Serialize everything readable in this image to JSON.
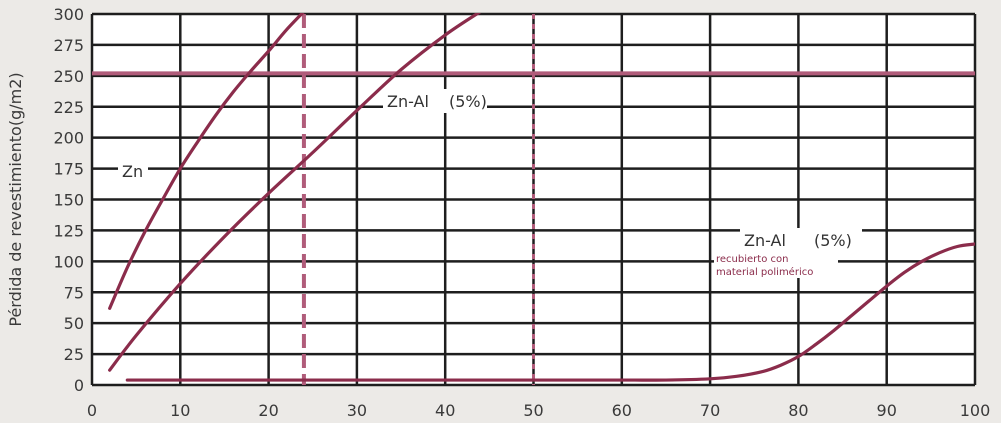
{
  "colors": {
    "background": "#eceae7",
    "plot_background": "#ffffff",
    "grid": "#1e1e1e",
    "curve": "#8b2c4b",
    "reference_line": "#b05c7a",
    "note": "#8b2c4b"
  },
  "chart_data": {
    "type": "line",
    "title": "",
    "xlabel": "",
    "ylabel": "Pérdida de revestimiento(g/m2)",
    "xlim": [
      0,
      100
    ],
    "ylim": [
      0,
      300
    ],
    "x_ticks": [
      "0",
      "10",
      "20",
      "30",
      "40",
      "50",
      "60",
      "70",
      "80",
      "90",
      "100"
    ],
    "y_ticks": [
      "0",
      "25",
      "50",
      "75",
      "100",
      "125",
      "150",
      "175",
      "200",
      "225",
      "250",
      "275",
      "300"
    ],
    "grid": true,
    "series": [
      {
        "x": [
          2,
          4,
          6,
          8,
          10,
          12,
          14,
          16,
          18,
          20,
          22,
          24
        ],
        "y": [
          62,
          95,
          124,
          150,
          175,
          197,
          218,
          237,
          254,
          270,
          287,
          302
        ]
      },
      {
        "x": [
          2,
          5,
          10,
          15,
          20,
          25,
          30,
          35,
          40,
          44
        ],
        "y": [
          12,
          40,
          82,
          120,
          155,
          188,
          222,
          255,
          283,
          302
        ]
      },
      {
        "x": [
          4,
          10,
          20,
          30,
          40,
          50,
          60,
          65,
          70,
          73,
          76,
          78,
          80,
          82,
          84,
          86,
          88,
          90,
          92,
          94,
          96,
          98,
          100
        ],
        "y": [
          4,
          4,
          4,
          4,
          4,
          4,
          4,
          4,
          5,
          7,
          11,
          16,
          23,
          33,
          44,
          56,
          68,
          80,
          91,
          100,
          107,
          112,
          114
        ]
      }
    ],
    "reference_lines": [
      {
        "orientation": "horizontal",
        "value": 252,
        "style": "solid"
      },
      {
        "orientation": "vertical",
        "value": 24,
        "style": "dashed"
      },
      {
        "orientation": "vertical",
        "value": 50,
        "style": "dotted"
      }
    ],
    "annotations": {
      "zn": "Zn",
      "zn_al": "Zn-Al",
      "zn_al_pct": "(5%)",
      "coated_line1": "recubierto con",
      "coated_line2": "material polimérico"
    }
  }
}
